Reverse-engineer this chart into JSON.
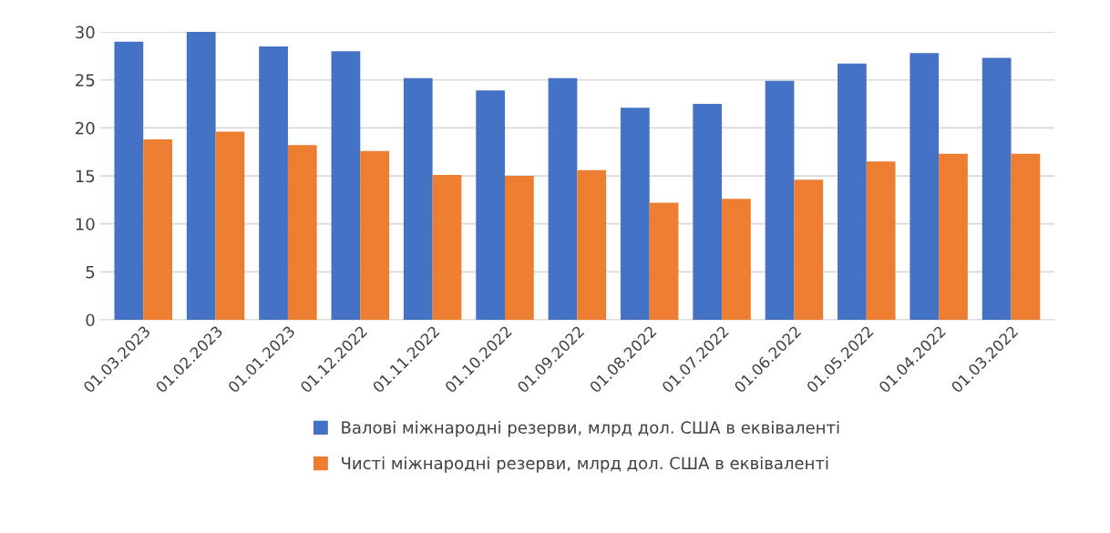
{
  "chart_data": {
    "type": "bar",
    "categories": [
      "01.03.2023",
      "01.02.2023",
      "01.01.2023",
      "01.12.2022",
      "01.11.2022",
      "01.10.2022",
      "01.09.2022",
      "01.08.2022",
      "01.07.2022",
      "01.06.2022",
      "01.05.2022",
      "01.04.2022",
      "01.03.2022"
    ],
    "series": [
      {
        "name": "Валові міжнародні резерви, млрд дол. США в еквіваленті",
        "color": "#4472c4",
        "values": [
          29.0,
          30.0,
          28.5,
          28.0,
          25.2,
          23.9,
          25.2,
          22.1,
          22.5,
          24.9,
          26.7,
          27.8,
          27.3
        ]
      },
      {
        "name": "Чисті міжнародні резерви, млрд дол. США в еквіваленті",
        "color": "#ed7d31",
        "values": [
          18.8,
          19.6,
          18.2,
          17.6,
          15.1,
          15.0,
          15.6,
          12.2,
          12.6,
          14.6,
          16.5,
          17.3,
          17.3
        ]
      }
    ],
    "ylim": [
      0,
      30
    ],
    "yticks": [
      0,
      5,
      10,
      15,
      20,
      25,
      30
    ],
    "grid": "y",
    "legend": "bottom"
  }
}
